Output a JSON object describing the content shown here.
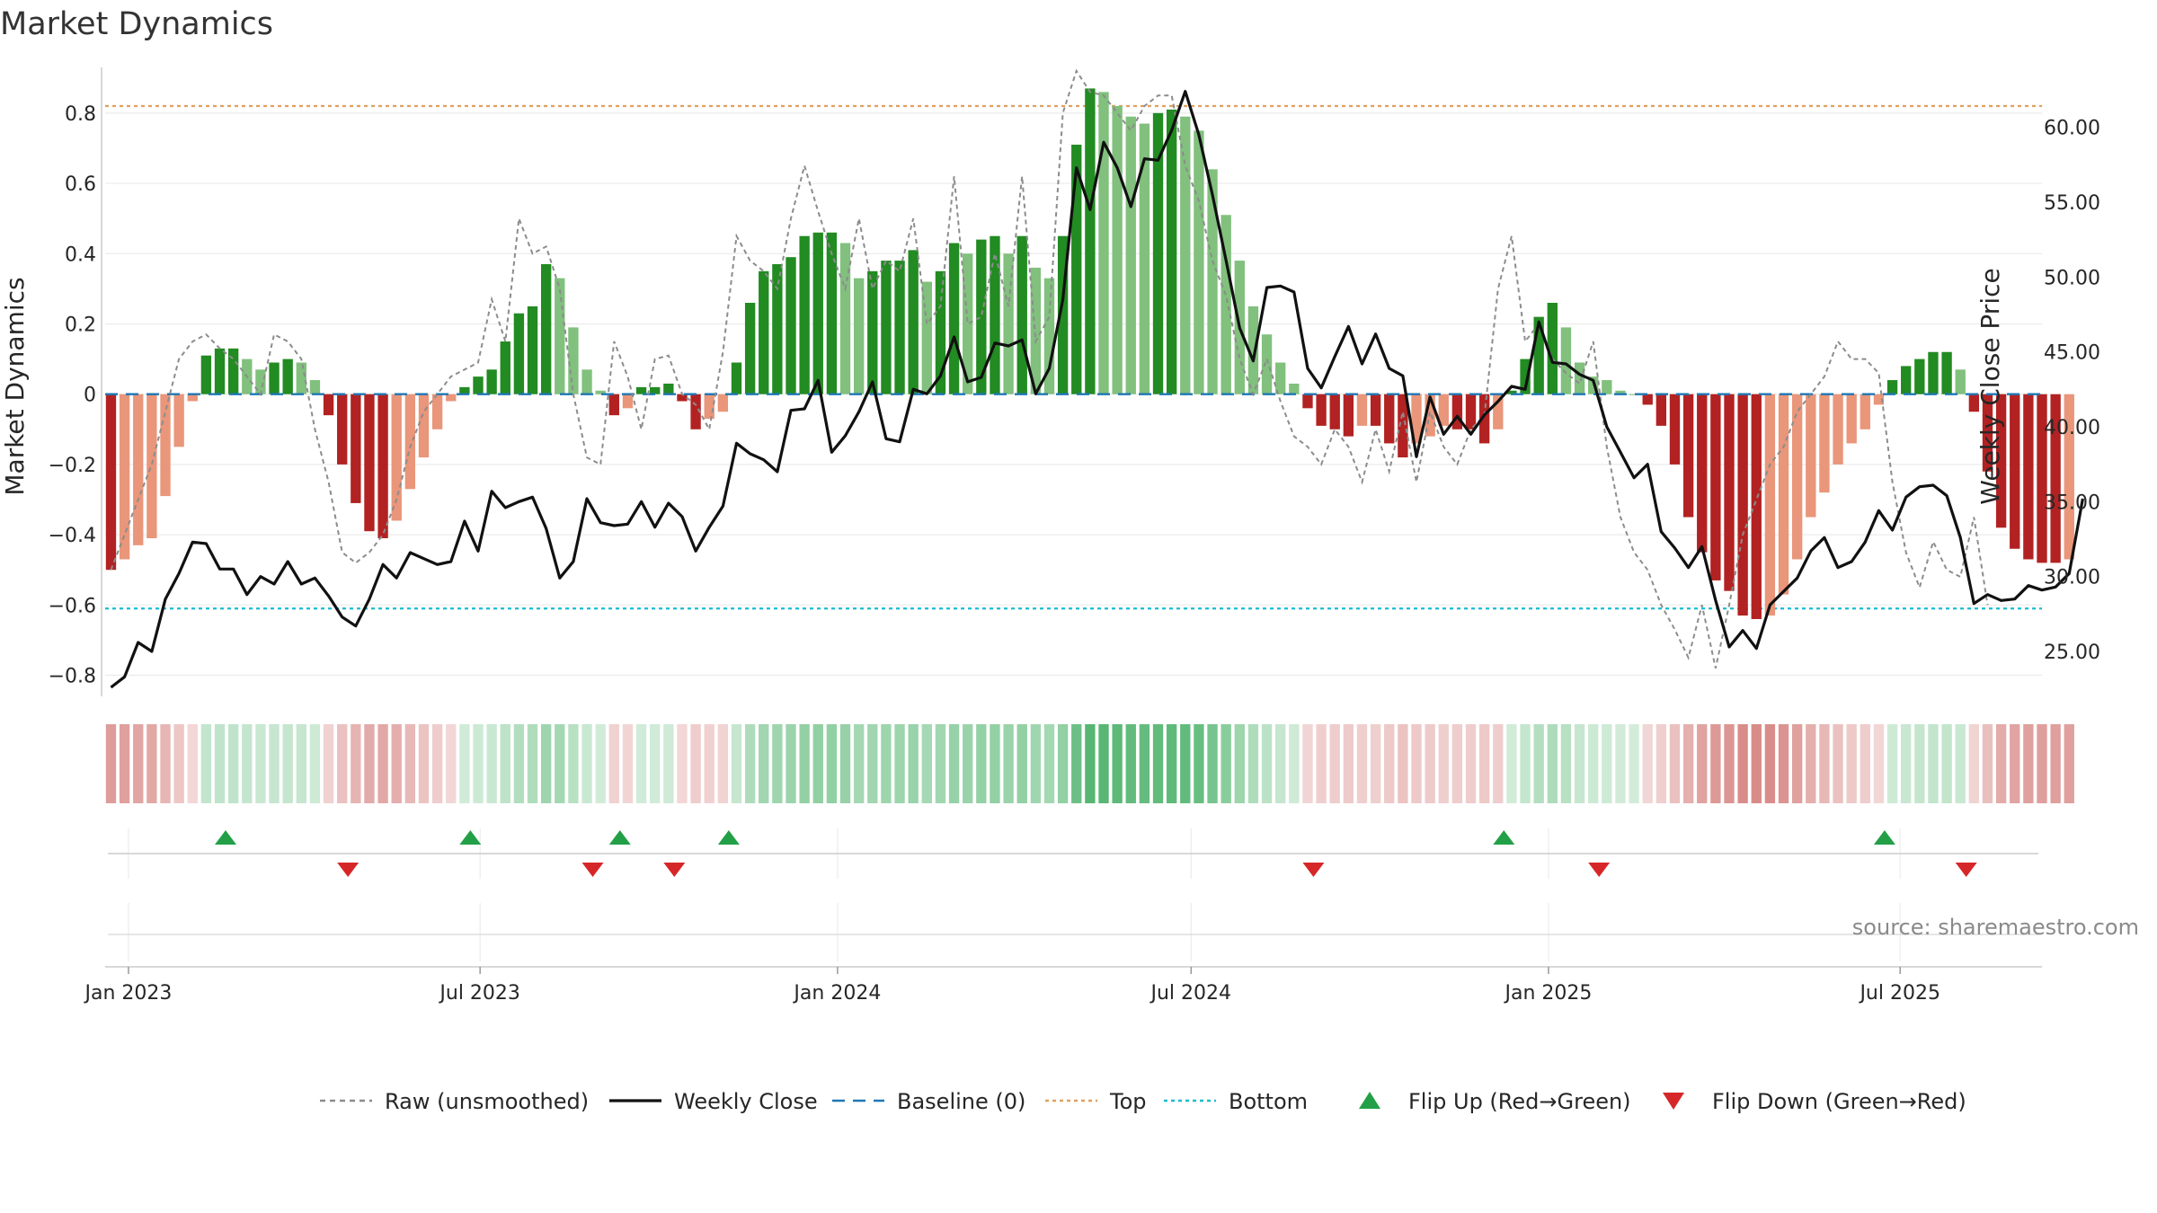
{
  "chart_data": {
    "type": "bar",
    "title": "Market Dynamics",
    "ylabel_left": "Market Dynamics",
    "ylabel_right": "Weekly Close Price",
    "source": "source: sharemaestro.com",
    "ylim_left": [
      -0.86,
      0.93
    ],
    "ylim_right": [
      22.0,
      64.0
    ],
    "y_ticks_left": [
      "0.8",
      "0.6",
      "0.4",
      "0.2",
      "0",
      "−0.2",
      "−0.4",
      "−0.6",
      "−0.8"
    ],
    "y_tick_values_left": [
      0.8,
      0.6,
      0.4,
      0.2,
      0,
      -0.2,
      -0.4,
      -0.6,
      -0.8
    ],
    "y_ticks_right": [
      "60.00",
      "55.00",
      "50.00",
      "45.00",
      "40.00",
      "35.00",
      "30.00",
      "25.00"
    ],
    "y_tick_values_right": [
      60,
      55,
      50,
      45,
      40,
      35,
      30,
      25
    ],
    "x_ticks": [
      "Jan 2023",
      "Jul 2023",
      "Jan 2024",
      "Jul 2024",
      "Jan 2025",
      "Jul 2025"
    ],
    "x_tick_dates": [
      "2023-01-01",
      "2023-07-01",
      "2024-01-01",
      "2024-07-01",
      "2025-01-01",
      "2025-07-01"
    ],
    "x_range": [
      "2022-12-20",
      "2025-09-12"
    ],
    "top_level": 0.82,
    "bottom_level": -0.61,
    "baseline": 0,
    "first_week": "2022-12-23",
    "week_step_days": 7,
    "market_dynamics_smoothed": [
      -0.5,
      -0.47,
      -0.43,
      -0.41,
      -0.29,
      -0.15,
      -0.02,
      0.11,
      0.13,
      0.13,
      0.1,
      0.07,
      0.09,
      0.1,
      0.09,
      0.04,
      -0.06,
      -0.2,
      -0.31,
      -0.39,
      -0.41,
      -0.36,
      -0.27,
      -0.18,
      -0.1,
      -0.02,
      0.02,
      0.05,
      0.07,
      0.15,
      0.23,
      0.25,
      0.37,
      0.33,
      0.19,
      0.07,
      0.01,
      -0.06,
      -0.04,
      0.02,
      0.02,
      0.03,
      -0.02,
      -0.1,
      -0.07,
      -0.05,
      0.09,
      0.26,
      0.35,
      0.37,
      0.39,
      0.45,
      0.46,
      0.46,
      0.43,
      0.33,
      0.35,
      0.38,
      0.38,
      0.41,
      0.32,
      0.35,
      0.43,
      0.4,
      0.44,
      0.45,
      0.4,
      0.45,
      0.36,
      0.33,
      0.45,
      0.71,
      0.87,
      0.86,
      0.82,
      0.79,
      0.77,
      0.8,
      0.81,
      0.79,
      0.75,
      0.64,
      0.51,
      0.38,
      0.25,
      0.17,
      0.09,
      0.03,
      -0.04,
      -0.09,
      -0.1,
      -0.12,
      -0.09,
      -0.09,
      -0.14,
      -0.18,
      -0.14,
      -0.12,
      -0.09,
      -0.1,
      -0.1,
      -0.14,
      -0.1,
      0.01,
      0.1,
      0.22,
      0.26,
      0.19,
      0.09,
      0.05,
      0.04,
      0.01,
      0.0,
      -0.03,
      -0.09,
      -0.2,
      -0.35,
      -0.45,
      -0.53,
      -0.56,
      -0.63,
      -0.64,
      -0.63,
      -0.57,
      -0.47,
      -0.35,
      -0.28,
      -0.2,
      -0.14,
      -0.1,
      -0.03,
      0.04,
      0.08,
      0.1,
      0.12,
      0.12,
      0.07,
      -0.05,
      -0.22,
      -0.38,
      -0.44,
      -0.47,
      -0.48,
      -0.48,
      -0.47
    ],
    "raw_unsmoothed": [
      -0.5,
      -0.4,
      -0.3,
      -0.2,
      -0.05,
      0.1,
      0.15,
      0.17,
      0.13,
      0.1,
      0.05,
      0.0,
      0.17,
      0.15,
      0.1,
      -0.1,
      -0.25,
      -0.45,
      -0.48,
      -0.45,
      -0.4,
      -0.3,
      -0.15,
      -0.05,
      0.0,
      0.05,
      0.07,
      0.09,
      0.27,
      0.15,
      0.5,
      0.4,
      0.42,
      0.3,
      0.0,
      -0.18,
      -0.2,
      0.15,
      0.05,
      -0.1,
      0.1,
      0.11,
      0.0,
      -0.03,
      -0.1,
      0.12,
      0.45,
      0.38,
      0.35,
      0.3,
      0.5,
      0.65,
      0.52,
      0.4,
      0.3,
      0.5,
      0.3,
      0.38,
      0.35,
      0.5,
      0.2,
      0.25,
      0.62,
      0.2,
      0.22,
      0.4,
      0.25,
      0.62,
      0.15,
      0.22,
      0.8,
      0.92,
      0.86,
      0.85,
      0.8,
      0.75,
      0.82,
      0.85,
      0.85,
      0.65,
      0.55,
      0.38,
      0.28,
      0.1,
      0.0,
      0.1,
      -0.02,
      -0.12,
      -0.15,
      -0.2,
      -0.1,
      -0.15,
      -0.25,
      -0.1,
      -0.22,
      -0.05,
      -0.25,
      -0.05,
      -0.15,
      -0.2,
      -0.1,
      -0.06,
      0.3,
      0.45,
      0.15,
      0.2,
      0.1,
      0.06,
      0.03,
      0.15,
      -0.15,
      -0.35,
      -0.45,
      -0.5,
      -0.6,
      -0.67,
      -0.75,
      -0.6,
      -0.78,
      -0.6,
      -0.4,
      -0.3,
      -0.2,
      -0.15,
      -0.05,
      0.0,
      0.05,
      0.15,
      0.1,
      0.1,
      0.06,
      -0.25,
      -0.45,
      -0.55,
      -0.42,
      -0.5,
      -0.52,
      -0.35,
      -0.6
    ],
    "weekly_close": [
      22.6,
      23.3,
      25.6,
      25.0,
      28.5,
      30.2,
      32.3,
      32.2,
      30.5,
      30.5,
      28.8,
      30.0,
      29.5,
      31.0,
      29.5,
      29.9,
      28.7,
      27.3,
      26.7,
      28.5,
      30.8,
      29.9,
      31.6,
      31.2,
      30.8,
      31.0,
      33.7,
      31.7,
      35.7,
      34.6,
      35.0,
      35.3,
      33.2,
      29.9,
      31.0,
      35.2,
      33.6,
      33.4,
      33.5,
      35.0,
      33.3,
      34.9,
      34.0,
      31.7,
      33.3,
      34.7,
      38.9,
      38.2,
      37.8,
      37.0,
      41.1,
      41.2,
      43.1,
      38.3,
      39.4,
      41.0,
      43.0,
      39.2,
      39.0,
      42.5,
      42.2,
      43.4,
      46.0,
      43.0,
      43.3,
      45.6,
      45.4,
      45.8,
      42.2,
      43.9,
      48.5,
      57.3,
      54.5,
      59.0,
      57.3,
      54.7,
      57.9,
      57.8,
      59.8,
      62.4,
      59.5,
      55.5,
      51.1,
      46.6,
      44.4,
      49.3,
      49.4,
      49.0,
      43.9,
      42.6,
      44.7,
      46.7,
      44.2,
      46.2,
      43.9,
      43.4,
      38.0,
      42.0,
      39.5,
      40.7,
      39.5,
      40.8,
      41.7,
      42.7,
      42.5,
      47.0,
      44.3,
      44.2,
      43.5,
      43.1,
      40.0,
      38.3,
      36.6,
      37.5,
      33.0,
      31.9,
      30.6,
      32.0,
      28.4,
      25.3,
      26.4,
      25.2,
      28.1,
      29.0,
      29.9,
      31.7,
      32.6,
      30.6,
      31.0,
      32.3,
      34.4,
      33.1,
      35.3,
      36.0,
      36.1,
      35.4,
      32.6,
      28.2,
      28.8,
      28.4,
      28.5,
      29.4,
      29.1,
      29.3,
      30.2,
      35.2
    ],
    "flip_up_dates": [
      "2023-02-20",
      "2023-06-26",
      "2023-09-11",
      "2023-11-06",
      "2024-12-09",
      "2025-06-23"
    ],
    "flip_down_dates": [
      "2023-04-24",
      "2023-08-28",
      "2023-10-09",
      "2024-09-02",
      "2025-01-27",
      "2025-08-04"
    ],
    "colors": {
      "pos_strong": "#228b22",
      "pos_weak": "#81c07d",
      "neg_strong": "#b22222",
      "neg_weak": "#e9967a",
      "raw_line": "#8c8c8c",
      "close_line": "#111111",
      "baseline": "#1f77b4",
      "top_line": "#e0a060",
      "bottom_line": "#17becf",
      "flip_up": "#23a047",
      "flip_down": "#d62728",
      "grid": "#ebebeb"
    },
    "legend_position": "bottom-center",
    "legend": [
      {
        "label": "Raw (unsmoothed)",
        "kind": "dashed-line",
        "color": "#8c8c8c"
      },
      {
        "label": "Weekly Close",
        "kind": "line",
        "color": "#111111"
      },
      {
        "label": "Baseline (0)",
        "kind": "dashed-line",
        "color": "#1f77b4"
      },
      {
        "label": "Top",
        "kind": "dotted-line",
        "color": "#e0a060"
      },
      {
        "label": "Bottom",
        "kind": "dotted-line",
        "color": "#17becf"
      },
      {
        "label": "Flip Up (Red→Green)",
        "kind": "triangle-up",
        "color": "#23a047"
      },
      {
        "label": "Flip Down (Green→Red)",
        "kind": "triangle-down",
        "color": "#d62728"
      }
    ]
  }
}
